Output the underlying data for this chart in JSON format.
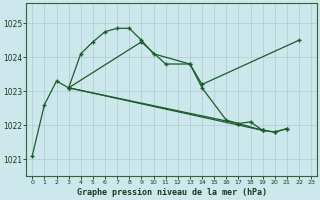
{
  "xlabel": "Graphe pression niveau de la mer (hPa)",
  "background_color": "#cce8ec",
  "grid_color": "#aacccc",
  "line_color": "#1a5c2a",
  "x_ticks": [
    0,
    1,
    2,
    3,
    4,
    5,
    6,
    7,
    8,
    9,
    10,
    11,
    12,
    13,
    14,
    15,
    16,
    17,
    18,
    19,
    20,
    21,
    22,
    23
  ],
  "ylim": [
    1020.5,
    1025.6
  ],
  "yticks": [
    1021,
    1022,
    1023,
    1024,
    1025
  ],
  "series_data": {
    "line1_x": [
      0,
      1,
      2,
      3,
      4,
      5,
      6,
      7,
      8,
      9,
      10,
      13,
      14,
      22
    ],
    "line1_y": [
      1021.1,
      1022.6,
      1023.3,
      1023.1,
      1024.1,
      1024.45,
      1024.75,
      1024.85,
      1024.85,
      1024.5,
      1024.1,
      1023.8,
      1023.2,
      1024.5
    ],
    "line2_x": [
      3,
      9,
      11,
      13,
      14,
      16,
      17,
      19
    ],
    "line2_y": [
      1023.1,
      1024.45,
      1023.8,
      1023.8,
      1023.1,
      1022.15,
      1022.05,
      1021.85
    ],
    "line3_x": [
      3,
      19,
      20,
      21
    ],
    "line3_y": [
      1023.1,
      1021.85,
      1021.8,
      1021.9
    ],
    "line4_x": [
      3,
      17,
      18,
      19,
      20,
      21
    ],
    "line4_y": [
      1023.1,
      1022.05,
      1022.1,
      1021.85,
      1021.8,
      1021.9
    ]
  }
}
